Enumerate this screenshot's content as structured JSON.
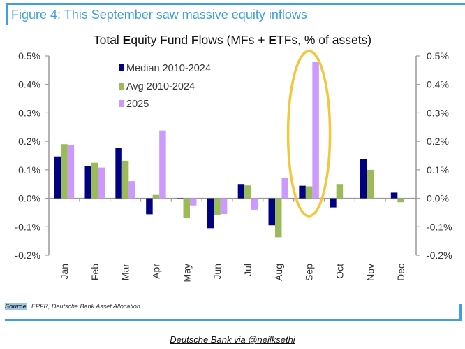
{
  "figure_title": "Figure 4: This September saw massive equity inflows",
  "source_label": "Source",
  "source_text": " : EPFR, Deutsche Bank Asset Allocation",
  "credit": "Deutsche Bank via @neilksethi",
  "colors": {
    "frame": "#3ea0dc",
    "median": "#000080",
    "avg": "#9bbb59",
    "y2025": "#cc99ff",
    "highlight": "#f5c63c",
    "axis": "#999999"
  },
  "chart_data": {
    "type": "bar",
    "title": "Total Equity Fund Flows (MFs + ETFs, % of assets)",
    "title_parts": [
      "Total ",
      "E",
      "quity Fund ",
      "F",
      "lows (MFs + ",
      "E",
      "TFs, % of assets)"
    ],
    "xlabel": "",
    "ylabel": "",
    "ylim": [
      -0.2,
      0.5
    ],
    "y_ticks": [
      -0.2,
      -0.1,
      0.0,
      0.1,
      0.2,
      0.3,
      0.4,
      0.5
    ],
    "y_tick_labels": [
      "-0.2%",
      "-0.1%",
      "0.0%",
      "0.1%",
      "0.2%",
      "0.3%",
      "0.4%",
      "0.5%"
    ],
    "secondary_y_tick_labels": [
      "-0.2%",
      "-0.1%",
      "0.0%",
      "0.1%",
      "0.2%",
      "0.3%",
      "0.4%",
      "0.5%"
    ],
    "categories": [
      "Jan",
      "Feb",
      "Mar",
      "Apr",
      "May",
      "Jun",
      "Jul",
      "Aug",
      "Sep",
      "Oct",
      "Nov",
      "Dec"
    ],
    "legend_position": "top-left",
    "series": [
      {
        "name": "Median 2010-2024",
        "values": [
          0.147,
          0.113,
          0.177,
          -0.056,
          -0.003,
          -0.105,
          0.05,
          -0.095,
          0.044,
          -0.032,
          0.138,
          0.02
        ]
      },
      {
        "name": "Avg 2010-2024",
        "values": [
          0.19,
          0.125,
          0.132,
          0.012,
          -0.07,
          -0.06,
          0.045,
          -0.137,
          0.042,
          0.05,
          0.1,
          -0.014
        ]
      },
      {
        "name": "2025",
        "values": [
          0.187,
          0.108,
          0.06,
          0.238,
          -0.025,
          -0.055,
          -0.04,
          0.072,
          0.48,
          null,
          null,
          null
        ]
      }
    ],
    "annotation": {
      "type": "ellipse",
      "category": "Sep"
    }
  }
}
